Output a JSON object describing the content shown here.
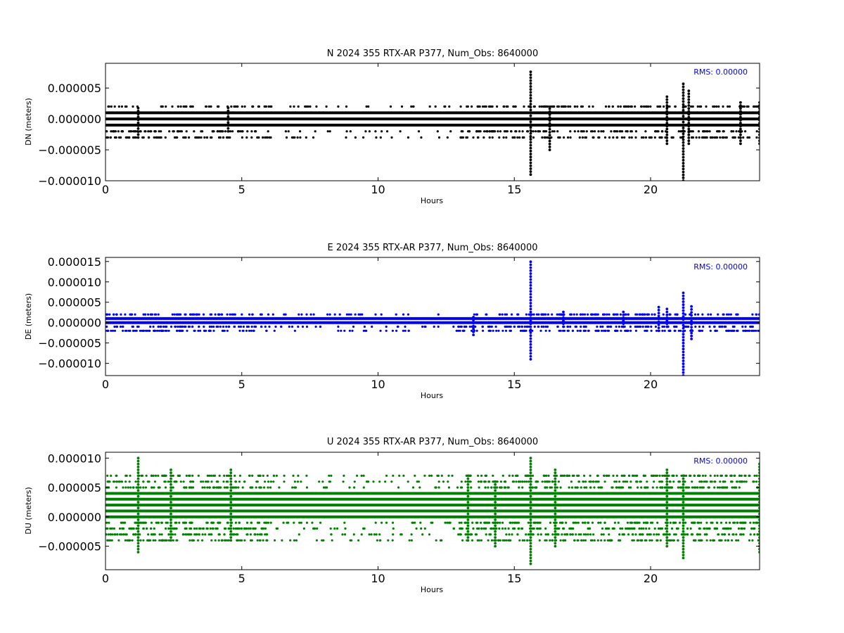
{
  "chart_data": [
    {
      "type": "scatter",
      "title": "N 2024 355 RTX-AR  P377, Num_Obs: 8640000",
      "xlabel": "Hours",
      "ylabel": "DN (meters)",
      "xlim": [
        0,
        24
      ],
      "ylim": [
        -1e-05,
        9e-06
      ],
      "xticks": [
        "0",
        "5",
        "10",
        "15",
        "20"
      ],
      "yticks": [
        "0.000005",
        "0.000000",
        "−0.000005",
        "−0.000010"
      ],
      "rms_label": "RMS:  0.00000",
      "color": "#000000",
      "series": [
        {
          "bands": [
            1e-06,
            0.0,
            -1e-06
          ],
          "outlier_levels": [
            2e-06,
            1e-06,
            -2e-06,
            -3e-06
          ]
        }
      ],
      "spikes": [
        {
          "x": 15.6,
          "ymax": 8e-06,
          "ymin": -9e-06
        },
        {
          "x": 21.2,
          "ymax": 6e-06,
          "ymin": -1e-05
        },
        {
          "x": 20.6,
          "ymax": 4e-06,
          "ymin": -4e-06
        },
        {
          "x": 21.4,
          "ymax": 5e-06,
          "ymin": -4e-06
        },
        {
          "x": 16.3,
          "ymax": 2e-06,
          "ymin": -5e-06
        },
        {
          "x": 23.3,
          "ymax": 3e-06,
          "ymin": -4e-06
        },
        {
          "x": 24.0,
          "ymax": 3e-06,
          "ymin": -4e-06
        },
        {
          "x": 1.2,
          "ymax": 2e-06,
          "ymin": -3e-06
        },
        {
          "x": 4.5,
          "ymax": 2e-06,
          "ymin": -2e-06
        }
      ],
      "grid": false,
      "legend": "none"
    },
    {
      "type": "scatter",
      "title": "E 2024 355 RTX-AR  P377, Num_Obs: 8640000",
      "xlabel": "Hours",
      "ylabel": "DE (meters)",
      "xlim": [
        0,
        24
      ],
      "ylim": [
        -1.3e-05,
        1.6e-05
      ],
      "xticks": [
        "0",
        "5",
        "10",
        "15",
        "20"
      ],
      "yticks": [
        "0.000015",
        "0.000010",
        "0.000005",
        "0.000000",
        "−0.000005",
        "−0.000010"
      ],
      "rms_label": "RMS:  0.00000",
      "color": "#0000ff",
      "series": [
        {
          "bands": [
            1e-06,
            0.0
          ],
          "outlier_levels": [
            2e-06,
            -1e-06,
            -2e-06
          ]
        }
      ],
      "spikes": [
        {
          "x": 15.6,
          "ymax": 1.5e-05,
          "ymin": -9e-06
        },
        {
          "x": 21.2,
          "ymax": 8e-06,
          "ymin": -1.3e-05
        },
        {
          "x": 13.5,
          "ymax": 2e-06,
          "ymin": -3e-06
        },
        {
          "x": 16.8,
          "ymax": 3e-06,
          "ymin": -1e-06
        },
        {
          "x": 19.0,
          "ymax": 3e-06,
          "ymin": -1e-06
        },
        {
          "x": 20.3,
          "ymax": 4e-06,
          "ymin": -2e-06
        },
        {
          "x": 21.5,
          "ymax": 4e-06,
          "ymin": -4e-06
        },
        {
          "x": 20.6,
          "ymax": 4e-06,
          "ymin": -1e-06
        }
      ],
      "grid": false,
      "legend": "none"
    },
    {
      "type": "scatter",
      "title": "U 2024 355 RTX-AR  P377, Num_Obs: 8640000",
      "xlabel": "Hours",
      "ylabel": "DU (meters)",
      "xlim": [
        0,
        24
      ],
      "ylim": [
        -9e-06,
        1.1e-05
      ],
      "xticks": [
        "0",
        "5",
        "10",
        "15",
        "20"
      ],
      "yticks": [
        "0.000010",
        "0.000005",
        "0.000000",
        "−0.000005"
      ],
      "rms_label": "RMS:  0.00000",
      "color": "#008000",
      "series": [
        {
          "bands": [
            4e-06,
            3e-06,
            2e-06,
            1e-06,
            0.0
          ],
          "outlier_levels": [
            7e-06,
            6e-06,
            5e-06,
            -1e-06,
            -2e-06,
            -3e-06,
            -4e-06
          ]
        }
      ],
      "spikes": [
        {
          "x": 1.2,
          "ymax": 1e-05,
          "ymin": -6e-06
        },
        {
          "x": 15.6,
          "ymax": 1e-05,
          "ymin": -8e-06
        },
        {
          "x": 21.2,
          "ymax": 7e-06,
          "ymin": -7e-06
        },
        {
          "x": 16.5,
          "ymax": 8e-06,
          "ymin": -5e-06
        },
        {
          "x": 20.6,
          "ymax": 8e-06,
          "ymin": -5e-06
        },
        {
          "x": 24.0,
          "ymax": 9e-06,
          "ymin": -6e-06
        },
        {
          "x": 2.4,
          "ymax": 8e-06,
          "ymin": -4e-06
        },
        {
          "x": 4.6,
          "ymax": 8e-06,
          "ymin": -4e-06
        },
        {
          "x": 13.3,
          "ymax": 7e-06,
          "ymin": -4e-06
        },
        {
          "x": 14.3,
          "ymax": 6e-06,
          "ymin": -5e-06
        }
      ],
      "grid": false,
      "legend": "none"
    }
  ]
}
